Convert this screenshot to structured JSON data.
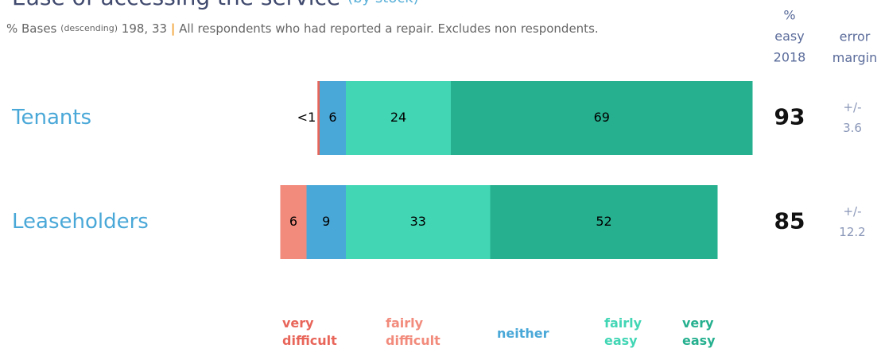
{
  "chart_data": {
    "type": "diverging_bar",
    "title": "Ease of accessing the service",
    "title_note": "(by stock)",
    "bases_label": "% Bases",
    "bases_note": "(descending)",
    "bases": "198, 33",
    "separator": "|",
    "description": "All respondents who had reported a repair. Excludes non respondents.",
    "easy_header": [
      "%",
      "easy",
      "2018"
    ],
    "margin_header": [
      "error",
      "margin"
    ],
    "categories": [
      "Tenants",
      "Leaseholders"
    ],
    "series": [
      {
        "name": "very difficult",
        "color": "#e8655a",
        "values": [
          0.5,
          0
        ],
        "value_labels": [
          "<1",
          null
        ],
        "side": "negative"
      },
      {
        "name": "fairly difficult",
        "color": "#f28b7c",
        "values": [
          0,
          6
        ],
        "side": "negative"
      },
      {
        "name": "neither",
        "color": "#4aa8d8",
        "values": [
          6,
          9
        ],
        "side": "negative"
      },
      {
        "name": "fairly easy",
        "color": "#42d6b5",
        "values": [
          24,
          33
        ],
        "side": "positive"
      },
      {
        "name": "very easy",
        "color": "#26b08f",
        "values": [
          69,
          52
        ],
        "side": "positive"
      }
    ],
    "easy_2018": [
      93,
      85
    ],
    "error_prefix": "+/-",
    "error_margin": [
      3.6,
      12.2
    ]
  }
}
